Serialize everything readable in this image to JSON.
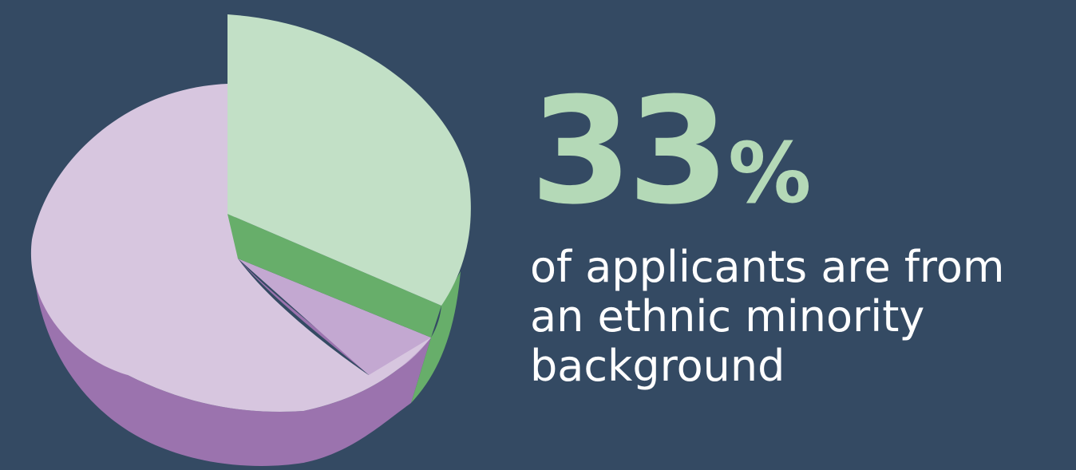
{
  "chart_data": {
    "type": "pie",
    "title": "",
    "slices": [
      {
        "label": "",
        "value": 33,
        "color": "#c2e0c6",
        "side_color": "#67ae6a"
      },
      {
        "label": "",
        "value": 67,
        "color": "#d7c6df",
        "side_color": "#9b73ae"
      }
    ],
    "legend": false
  },
  "stat": {
    "number": "33",
    "symbol": "%",
    "caption_lines": [
      "of applicants are from",
      "an ethnic minority",
      "background"
    ]
  }
}
